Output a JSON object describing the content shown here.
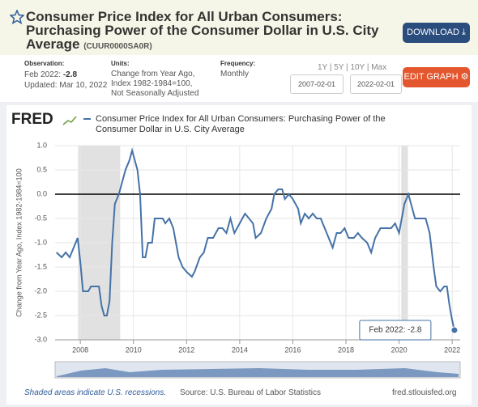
{
  "header": {
    "title": "Consumer Price Index for All Urban Consumers: Purchasing Power of the Consumer Dollar in U.S. City Average",
    "series_id": "(CUUR0000SA0R)",
    "download": "DOWNLOAD"
  },
  "meta": {
    "observation_label": "Observation:",
    "observation_date": "Feb 2022:",
    "observation_value": "-2.8",
    "updated": "Updated: Mar 10, 2022",
    "units_label": "Units:",
    "units": [
      "Change from Year Ago,",
      "Index 1982-1984=100,",
      "Not Seasonally Adjusted"
    ],
    "frequency_label": "Frequency:",
    "frequency": "Monthly",
    "ranges": [
      "1Y",
      "5Y",
      "10Y",
      "Max"
    ],
    "start_date": "2007-02-01",
    "end_date": "2022-02-01",
    "edit_graph": "EDIT GRAPH"
  },
  "chart_data": {
    "type": "line",
    "logo": "FRED",
    "ylabel": "Change from Year Ago, Index 1982-1984=100",
    "x": [
      2007.1,
      2007.3,
      2007.45,
      2007.6,
      2007.75,
      2007.9,
      2008.0,
      2008.1,
      2008.3,
      2008.4,
      2008.7,
      2008.8,
      2008.9,
      2009.0,
      2009.1,
      2009.2,
      2009.3,
      2009.45,
      2009.55,
      2009.7,
      2009.85,
      2009.95,
      2010.05,
      2010.15,
      2010.25,
      2010.35,
      2010.45,
      2010.55,
      2010.7,
      2010.8,
      2011.0,
      2011.1,
      2011.2,
      2011.35,
      2011.5,
      2011.6,
      2011.7,
      2011.85,
      2012.0,
      2012.2,
      2012.3,
      2012.5,
      2012.65,
      2012.8,
      2013.0,
      2013.2,
      2013.35,
      2013.5,
      2013.65,
      2013.8,
      2014.0,
      2014.2,
      2014.35,
      2014.5,
      2014.6,
      2014.8,
      2015.0,
      2015.2,
      2015.3,
      2015.45,
      2015.6,
      2015.7,
      2015.85,
      2016.0,
      2016.2,
      2016.3,
      2016.45,
      2016.6,
      2016.75,
      2016.9,
      2017.05,
      2017.2,
      2017.35,
      2017.5,
      2017.65,
      2017.8,
      2017.95,
      2018.1,
      2018.3,
      2018.45,
      2018.6,
      2018.8,
      2018.95,
      2019.1,
      2019.3,
      2019.5,
      2019.7,
      2019.85,
      2020.0,
      2020.2,
      2020.35,
      2020.5,
      2020.6,
      2020.8,
      2021.0,
      2021.15,
      2021.3,
      2021.4,
      2021.55,
      2021.7,
      2021.8,
      2021.9,
      2022.0,
      2022.083
    ],
    "series": [
      {
        "name": "Consumer Price Index for All Urban Consumers: Purchasing Power of the Consumer Dollar in U.S. City Average",
        "color": "#4572a7",
        "values": [
          -1.2,
          -1.3,
          -1.2,
          -1.3,
          -1.1,
          -0.9,
          -1.4,
          -2.0,
          -2.0,
          -1.9,
          -1.9,
          -2.3,
          -2.5,
          -2.5,
          -2.2,
          -1.0,
          -0.2,
          0.0,
          0.2,
          0.5,
          0.7,
          0.9,
          0.7,
          0.5,
          0.0,
          -1.3,
          -1.3,
          -1.0,
          -1.0,
          -0.5,
          -0.5,
          -0.5,
          -0.6,
          -0.5,
          -0.7,
          -1.0,
          -1.3,
          -1.5,
          -1.6,
          -1.7,
          -1.6,
          -1.3,
          -1.2,
          -0.9,
          -0.9,
          -0.7,
          -0.7,
          -0.8,
          -0.5,
          -0.8,
          -0.6,
          -0.4,
          -0.5,
          -0.6,
          -0.9,
          -0.8,
          -0.5,
          -0.3,
          0.0,
          0.1,
          0.1,
          -0.1,
          0.0,
          -0.1,
          -0.3,
          -0.6,
          -0.4,
          -0.5,
          -0.4,
          -0.5,
          -0.5,
          -0.7,
          -0.9,
          -1.1,
          -0.8,
          -0.8,
          -0.7,
          -0.9,
          -0.9,
          -0.8,
          -0.9,
          -1.0,
          -1.2,
          -0.9,
          -0.7,
          -0.7,
          -0.7,
          -0.6,
          -0.8,
          -0.2,
          0.0,
          -0.3,
          -0.5,
          -0.5,
          -0.5,
          -0.8,
          -1.5,
          -1.9,
          -2.0,
          -1.9,
          -1.9,
          -2.3,
          -2.6,
          -2.8
        ]
      }
    ],
    "xlim": [
      2007.05,
      2022.3
    ],
    "xticks": [
      2008,
      2010,
      2012,
      2014,
      2016,
      2018,
      2020,
      2022
    ],
    "ylim": [
      -3.0,
      1.0
    ],
    "yticks": [
      {
        "value": 1.0,
        "label": "1.0"
      },
      0.5,
      {
        "value": 0.0,
        "label": "0.0"
      },
      -0.5,
      {
        "value": -1.0,
        "label": "-1.0"
      },
      -1.5,
      {
        "value": -2.0,
        "label": "-2.0"
      },
      -2.5,
      {
        "value": -3.0,
        "label": "-3.0"
      }
    ],
    "grid": true,
    "reference_line": 0,
    "recessions": [
      [
        2007.917,
        2009.5
      ],
      [
        2020.083,
        2020.333
      ]
    ],
    "annotation": "Feb 2022: -2.8",
    "note": "Shaded areas indicate U.S. recessions.",
    "source": "Source: U.S. Bureau of Labor Statistics",
    "site": "fred.stlouisfed.org"
  }
}
